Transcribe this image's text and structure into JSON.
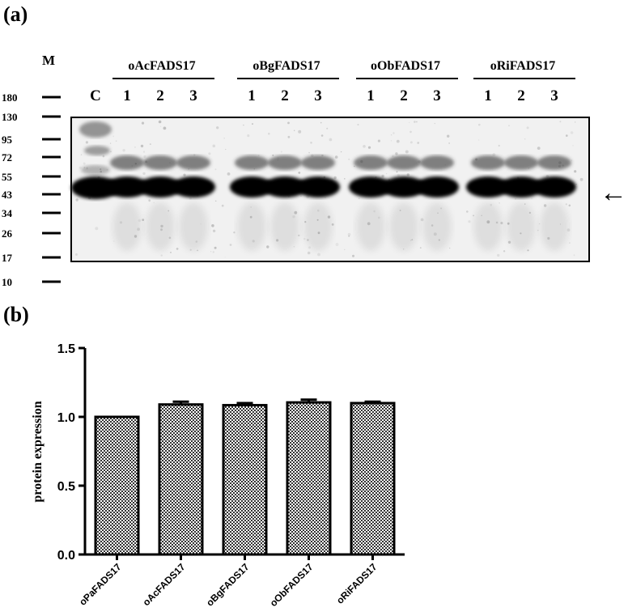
{
  "panel_a": {
    "label": "(a)",
    "marker_header": "M",
    "marker_sizes": [
      "180",
      "130",
      "95",
      "72",
      "55",
      "43",
      "34",
      "26",
      "17",
      "10"
    ],
    "control_label": "C",
    "groups": [
      {
        "name": "oAcFADS17",
        "lanes": [
          "1",
          "2",
          "3"
        ]
      },
      {
        "name": "oBgFADS17",
        "lanes": [
          "1",
          "2",
          "3"
        ]
      },
      {
        "name": "oObFADS17",
        "lanes": [
          "1",
          "2",
          "3"
        ]
      },
      {
        "name": "oRiFADS17",
        "lanes": [
          "1",
          "2",
          "3"
        ]
      }
    ],
    "arrow_glyph": "←"
  },
  "panel_b": {
    "label": "(b)"
  },
  "chart_data": {
    "type": "bar",
    "categories": [
      "oPaFADS17",
      "oAcFADS17",
      "oBgFADS17",
      "oObFADS17",
      "oRiFADS17"
    ],
    "values": [
      1.0,
      1.09,
      1.085,
      1.105,
      1.1
    ],
    "errors": [
      0.0,
      0.02,
      0.015,
      0.02,
      0.01
    ],
    "xlabel": "",
    "ylabel": "protein expression",
    "ylim": [
      0,
      1.5
    ],
    "yticks": [
      "0.0",
      "0.5",
      "1.0",
      "1.5"
    ],
    "grid": false,
    "bar_fill": "checkered"
  }
}
